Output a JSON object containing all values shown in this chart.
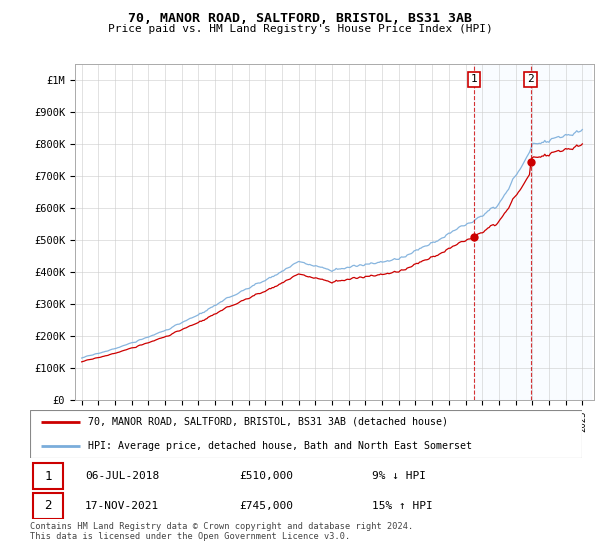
{
  "title": "70, MANOR ROAD, SALTFORD, BRISTOL, BS31 3AB",
  "subtitle": "Price paid vs. HM Land Registry's House Price Index (HPI)",
  "legend_line1": "70, MANOR ROAD, SALTFORD, BRISTOL, BS31 3AB (detached house)",
  "legend_line2": "HPI: Average price, detached house, Bath and North East Somerset",
  "transaction1_date": "06-JUL-2018",
  "transaction1_price": "£510,000",
  "transaction1_hpi": "9% ↓ HPI",
  "transaction2_date": "17-NOV-2021",
  "transaction2_price": "£745,000",
  "transaction2_hpi": "15% ↑ HPI",
  "footnote": "Contains HM Land Registry data © Crown copyright and database right 2024.\nThis data is licensed under the Open Government Licence v3.0.",
  "ylim": [
    0,
    1050000
  ],
  "yticks": [
    0,
    100000,
    200000,
    300000,
    400000,
    500000,
    600000,
    700000,
    800000,
    900000,
    1000000
  ],
  "ytick_labels": [
    "£0",
    "£100K",
    "£200K",
    "£300K",
    "£400K",
    "£500K",
    "£600K",
    "£700K",
    "£800K",
    "£900K",
    "£1M"
  ],
  "hpi_color": "#7aaddb",
  "price_color": "#cc0000",
  "shade_color": "#ddeeff",
  "vline_color": "#cc0000",
  "sale1_year": 2018.5,
  "sale1_price": 510000,
  "sale2_year": 2021.9,
  "sale2_price": 745000,
  "grid_color": "#cccccc",
  "border_color": "#aaaaaa"
}
